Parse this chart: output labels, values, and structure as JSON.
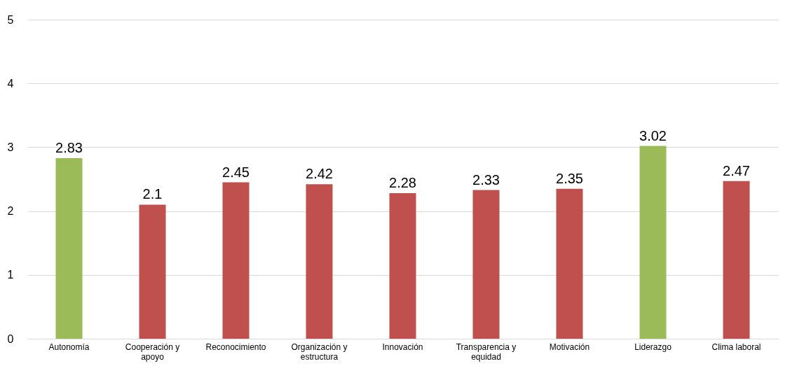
{
  "chart_data": {
    "type": "bar",
    "categories": [
      "Autonomía",
      "Cooperación y apoyo",
      "Reconocimiento",
      "Organización y estructura",
      "Innovación",
      "Transparencia y equidad",
      "Motivación",
      "Liderazgo",
      "Clima laboral"
    ],
    "values": [
      2.83,
      2.1,
      2.45,
      2.42,
      2.28,
      2.33,
      2.35,
      3.02,
      2.47
    ],
    "colors": [
      "#9bbb59",
      "#c0504d",
      "#c0504d",
      "#c0504d",
      "#c0504d",
      "#c0504d",
      "#c0504d",
      "#9bbb59",
      "#c0504d"
    ],
    "ylim": [
      0,
      5
    ],
    "yticks": [
      0,
      1,
      2,
      3,
      4,
      5
    ],
    "grid": "y",
    "data_labels": true
  }
}
